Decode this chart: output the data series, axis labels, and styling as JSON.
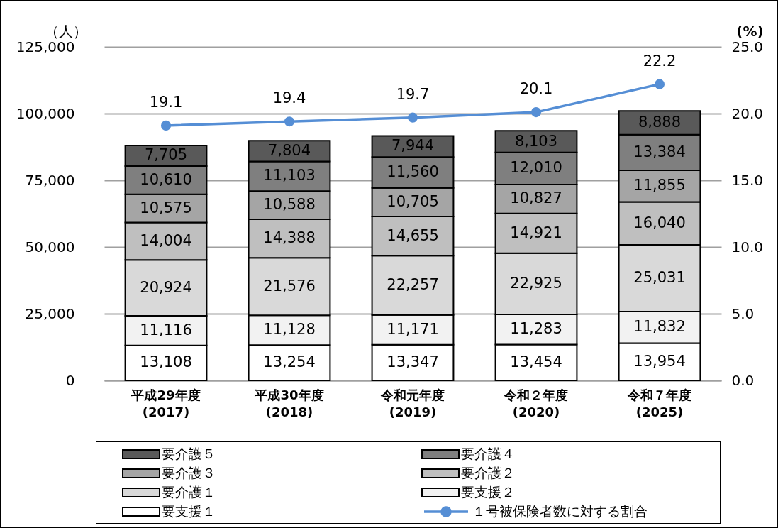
{
  "chart_data": {
    "type": "bar",
    "stacked": true,
    "ylabel": "（人）",
    "y2label": "(%)",
    "categories": [
      "平成29年度\n(2017)",
      "平成30年度\n(2018)",
      "令和元年度\n(2019)",
      "令和２年度\n(2020)",
      "令和７年度\n(2025)"
    ],
    "series": [
      {
        "name": "要支援１",
        "color": "#ffffff",
        "values": [
          13108,
          13254,
          13347,
          13454,
          13954
        ],
        "value_labels": [
          "13,108",
          "13,254",
          "13,347",
          "13,454",
          "13,954"
        ]
      },
      {
        "name": "要支援２",
        "color": "#f2f2f2",
        "values": [
          11116,
          11128,
          11171,
          11283,
          11832
        ],
        "value_labels": [
          "11,116",
          "11,128",
          "11,171",
          "11,283",
          "11,832"
        ]
      },
      {
        "name": "要介護１",
        "color": "#d9d9d9",
        "values": [
          20924,
          21576,
          22257,
          22925,
          25031
        ],
        "value_labels": [
          "20,924",
          "21,576",
          "22,257",
          "22,925",
          "25,031"
        ]
      },
      {
        "name": "要介護２",
        "color": "#bfbfbf",
        "values": [
          14004,
          14388,
          14655,
          14921,
          16040
        ],
        "value_labels": [
          "14,004",
          "14,388",
          "14,655",
          "14,921",
          "16,040"
        ]
      },
      {
        "name": "要介護３",
        "color": "#a5a5a5",
        "values": [
          10575,
          10588,
          10705,
          10827,
          11855
        ],
        "value_labels": [
          "10,575",
          "10,588",
          "10,705",
          "10,827",
          "11,855"
        ]
      },
      {
        "name": "要介護４",
        "color": "#7f7f7f",
        "values": [
          10610,
          11103,
          11560,
          12010,
          13384
        ],
        "value_labels": [
          "10,610",
          "11,103",
          "11,560",
          "12,010",
          "13,384"
        ]
      },
      {
        "name": "要介護５",
        "color": "#595959",
        "values": [
          7705,
          7804,
          7944,
          8103,
          8888
        ],
        "value_labels": [
          "7,705",
          "7,804",
          "7,944",
          "8,103",
          "8,888"
        ]
      },
      {
        "name": "１号被保険者数に対する割合",
        "type": "line",
        "axis": "y2",
        "marker": "circle",
        "color": "#558ed5",
        "values": [
          19.1,
          19.4,
          19.7,
          20.1,
          22.2
        ],
        "value_labels": [
          "19.1",
          "19.4",
          "19.7",
          "20.1",
          "22.2"
        ]
      }
    ],
    "ylim": [
      0,
      125000
    ],
    "yticks": [
      0,
      {
        "value": 25000,
        "label": "25,000"
      },
      {
        "value": 50000,
        "label": "50,000"
      },
      {
        "value": 75000,
        "label": "75,000"
      },
      {
        "value": 100000,
        "label": "100,000"
      },
      {
        "value": 125000,
        "label": "125,000"
      }
    ],
    "y2lim": [
      0,
      25
    ],
    "y2ticks": [
      {
        "value": 0,
        "label": "0.0"
      },
      {
        "value": 5,
        "label": "5.0"
      },
      {
        "value": 10,
        "label": "10.0"
      },
      {
        "value": 15,
        "label": "15.0"
      },
      {
        "value": 20,
        "label": "20.0"
      },
      {
        "value": 25,
        "label": "25.0"
      }
    ],
    "grid": "y",
    "legend": "bottom"
  }
}
